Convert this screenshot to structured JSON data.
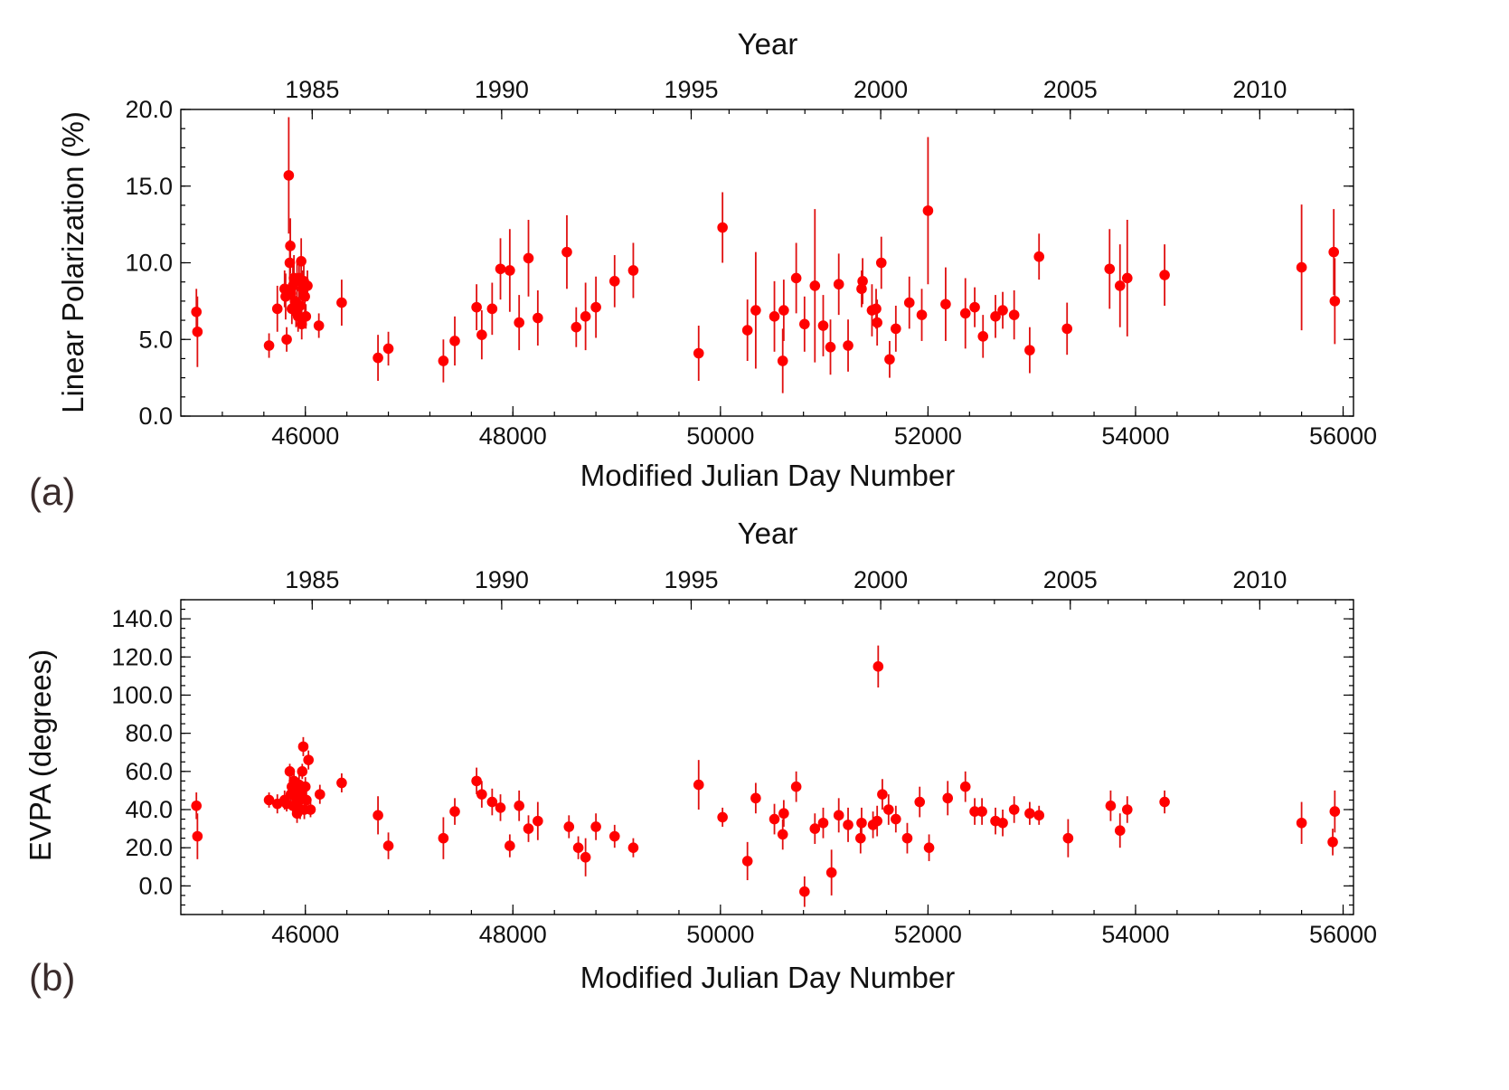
{
  "colors": {
    "marker": "#ff0000",
    "errorbar": "#e01010",
    "axis": "#000000"
  },
  "chart_data": [
    {
      "panel_label": "(a)",
      "type": "scatter",
      "title": "",
      "top_axis_label": "Year",
      "top_ticks": [
        "1985",
        "1990",
        "1995",
        "2000",
        "2005",
        "2010"
      ],
      "top_tick_mjd": [
        46066,
        47892,
        49718,
        51544,
        53371,
        55197
      ],
      "xlabel": "Modified Julian Day Number",
      "ylabel": "Linear Polarization (%)",
      "xlim": [
        44800,
        56100
      ],
      "ylim": [
        0,
        20
      ],
      "x_ticks": [
        "46000",
        "48000",
        "50000",
        "52000",
        "54000",
        "56000"
      ],
      "x_tick_values": [
        46000,
        48000,
        50000,
        52000,
        54000,
        56000
      ],
      "y_ticks": [
        "0.0",
        "5.0",
        "10.0",
        "15.0",
        "20.0"
      ],
      "y_tick_values": [
        0,
        5,
        10,
        15,
        20
      ],
      "points": [
        [
          44950,
          6.8,
          1.5
        ],
        [
          44960,
          5.5,
          2.3
        ],
        [
          45650,
          4.6,
          0.8
        ],
        [
          45730,
          7.0,
          1.5
        ],
        [
          45800,
          8.3,
          1.2
        ],
        [
          45810,
          7.8,
          1.5
        ],
        [
          45820,
          5.0,
          0.8
        ],
        [
          45840,
          15.7,
          3.8
        ],
        [
          45850,
          10.0,
          1.5
        ],
        [
          45855,
          11.1,
          1.8
        ],
        [
          45860,
          8.0,
          1.2
        ],
        [
          45870,
          7.0,
          1.0
        ],
        [
          45880,
          8.5,
          1.3
        ],
        [
          45890,
          9.0,
          1.5
        ],
        [
          45900,
          7.5,
          1.2
        ],
        [
          45910,
          6.8,
          1.0
        ],
        [
          45920,
          8.8,
          1.2
        ],
        [
          45930,
          6.5,
          1.0
        ],
        [
          45940,
          9.0,
          1.3
        ],
        [
          45950,
          7.2,
          1.0
        ],
        [
          45960,
          10.1,
          1.5
        ],
        [
          45965,
          6.0,
          1.0
        ],
        [
          45975,
          8.3,
          1.2
        ],
        [
          45985,
          8.8,
          1.2
        ],
        [
          45995,
          7.8,
          1.0
        ],
        [
          46005,
          6.5,
          0.8
        ],
        [
          46020,
          8.5,
          1.0
        ],
        [
          46130,
          5.9,
          0.8
        ],
        [
          46350,
          7.4,
          1.5
        ],
        [
          46700,
          3.8,
          1.5
        ],
        [
          46800,
          4.4,
          1.1
        ],
        [
          47330,
          3.6,
          1.4
        ],
        [
          47440,
          4.9,
          1.6
        ],
        [
          47650,
          7.1,
          1.5
        ],
        [
          47700,
          5.3,
          1.6
        ],
        [
          47800,
          7.0,
          1.7
        ],
        [
          47880,
          9.6,
          2.0
        ],
        [
          47970,
          9.5,
          2.7
        ],
        [
          48060,
          6.1,
          1.8
        ],
        [
          48150,
          10.3,
          2.5
        ],
        [
          48240,
          6.4,
          1.8
        ],
        [
          48520,
          10.7,
          2.4
        ],
        [
          48610,
          5.8,
          1.3
        ],
        [
          48700,
          6.5,
          2.2
        ],
        [
          48800,
          7.1,
          2.0
        ],
        [
          48980,
          8.8,
          1.7
        ],
        [
          49160,
          9.5,
          1.8
        ],
        [
          49790,
          4.1,
          1.8
        ],
        [
          50020,
          12.3,
          2.3
        ],
        [
          50260,
          5.6,
          2.0
        ],
        [
          50340,
          6.9,
          3.8
        ],
        [
          50520,
          6.5,
          2.3
        ],
        [
          50600,
          3.6,
          2.1
        ],
        [
          50610,
          6.9,
          2.0
        ],
        [
          50730,
          9.0,
          2.3
        ],
        [
          50810,
          6.0,
          1.8
        ],
        [
          50910,
          8.5,
          5.0
        ],
        [
          50990,
          5.9,
          2.0
        ],
        [
          51060,
          4.5,
          1.8
        ],
        [
          51140,
          8.6,
          2.0
        ],
        [
          51230,
          4.6,
          1.7
        ],
        [
          51360,
          8.3,
          1.2
        ],
        [
          51370,
          8.8,
          1.5
        ],
        [
          51460,
          6.9,
          1.7
        ],
        [
          51500,
          7.0,
          1.3
        ],
        [
          51510,
          6.1,
          1.5
        ],
        [
          51550,
          10.0,
          1.7
        ],
        [
          51630,
          3.7,
          1.2
        ],
        [
          51690,
          5.7,
          1.5
        ],
        [
          51820,
          7.4,
          1.7
        ],
        [
          51940,
          6.6,
          1.7
        ],
        [
          52000,
          13.4,
          4.8
        ],
        [
          52170,
          7.3,
          2.4
        ],
        [
          52360,
          6.7,
          2.3
        ],
        [
          52450,
          7.1,
          1.3
        ],
        [
          52530,
          5.2,
          1.4
        ],
        [
          52650,
          6.5,
          1.4
        ],
        [
          52720,
          6.9,
          1.2
        ],
        [
          52830,
          6.6,
          1.6
        ],
        [
          52980,
          4.3,
          1.5
        ],
        [
          53070,
          10.4,
          1.5
        ],
        [
          53340,
          5.7,
          1.7
        ],
        [
          53750,
          9.6,
          2.6
        ],
        [
          53850,
          8.5,
          2.7
        ],
        [
          53920,
          9.0,
          3.8
        ],
        [
          54280,
          9.2,
          2.0
        ],
        [
          55600,
          9.7,
          4.1
        ],
        [
          55910,
          10.7,
          2.8
        ],
        [
          55920,
          7.5,
          2.8
        ]
      ]
    },
    {
      "panel_label": "(b)",
      "type": "scatter",
      "title": "",
      "top_axis_label": "Year",
      "top_ticks": [
        "1985",
        "1990",
        "1995",
        "2000",
        "2005",
        "2010"
      ],
      "top_tick_mjd": [
        46066,
        47892,
        49718,
        51544,
        53371,
        55197
      ],
      "xlabel": "Modified Julian Day Number",
      "ylabel": "EVPA (degrees)",
      "xlim": [
        44800,
        56100
      ],
      "ylim": [
        -15,
        150
      ],
      "x_ticks": [
        "46000",
        "48000",
        "50000",
        "52000",
        "54000",
        "56000"
      ],
      "x_tick_values": [
        46000,
        48000,
        50000,
        52000,
        54000,
        56000
      ],
      "y_ticks": [
        "0.0",
        "20.0",
        "40.0",
        "60.0",
        "80.0",
        "100.0",
        "120.0",
        "140.0"
      ],
      "y_tick_values": [
        0,
        20,
        40,
        60,
        80,
        100,
        120,
        140
      ],
      "points": [
        [
          44950,
          42,
          7
        ],
        [
          44960,
          26,
          12
        ],
        [
          45650,
          45,
          4
        ],
        [
          45730,
          43,
          5
        ],
        [
          45800,
          45,
          5
        ],
        [
          45820,
          43,
          4
        ],
        [
          45850,
          60,
          4
        ],
        [
          45860,
          48,
          6
        ],
        [
          45870,
          52,
          5
        ],
        [
          45880,
          42,
          5
        ],
        [
          45890,
          55,
          6
        ],
        [
          45900,
          47,
          5
        ],
        [
          45910,
          50,
          6
        ],
        [
          45920,
          38,
          5
        ],
        [
          45930,
          44,
          5
        ],
        [
          45940,
          53,
          6
        ],
        [
          45950,
          40,
          5
        ],
        [
          45960,
          48,
          6
        ],
        [
          45970,
          60,
          4
        ],
        [
          45980,
          73,
          5
        ],
        [
          45990,
          40,
          5
        ],
        [
          46000,
          52,
          5
        ],
        [
          46010,
          45,
          5
        ],
        [
          46030,
          66,
          5
        ],
        [
          46050,
          40,
          4
        ],
        [
          46140,
          48,
          5
        ],
        [
          46350,
          54,
          5
        ],
        [
          46700,
          37,
          10
        ],
        [
          46800,
          21,
          7
        ],
        [
          47330,
          25,
          11
        ],
        [
          47440,
          39,
          7
        ],
        [
          47650,
          55,
          7
        ],
        [
          47700,
          48,
          7
        ],
        [
          47800,
          44,
          7
        ],
        [
          47880,
          41,
          7
        ],
        [
          47970,
          21,
          6
        ],
        [
          48060,
          42,
          8
        ],
        [
          48150,
          30,
          7
        ],
        [
          48240,
          34,
          10
        ],
        [
          48540,
          31,
          6
        ],
        [
          48630,
          20,
          6
        ],
        [
          48700,
          15,
          10
        ],
        [
          48800,
          31,
          7
        ],
        [
          48980,
          26,
          6
        ],
        [
          49160,
          20,
          5
        ],
        [
          49790,
          53,
          13
        ],
        [
          50020,
          36,
          5
        ],
        [
          50260,
          13,
          10
        ],
        [
          50340,
          46,
          8
        ],
        [
          50520,
          35,
          8
        ],
        [
          50600,
          27,
          8
        ],
        [
          50610,
          38,
          7
        ],
        [
          50730,
          52,
          8
        ],
        [
          50810,
          -3,
          8
        ],
        [
          50910,
          30,
          8
        ],
        [
          50990,
          33,
          8
        ],
        [
          51070,
          7,
          12
        ],
        [
          51140,
          37,
          9
        ],
        [
          51230,
          32,
          9
        ],
        [
          51350,
          25,
          8
        ],
        [
          51360,
          33,
          8
        ],
        [
          51470,
          32,
          7
        ],
        [
          51510,
          34,
          8
        ],
        [
          51520,
          115,
          11
        ],
        [
          51560,
          48,
          8
        ],
        [
          51620,
          40,
          8
        ],
        [
          51690,
          35,
          7
        ],
        [
          51800,
          25,
          8
        ],
        [
          51920,
          44,
          8
        ],
        [
          52010,
          20,
          7
        ],
        [
          52190,
          46,
          9
        ],
        [
          52360,
          52,
          8
        ],
        [
          52450,
          39,
          7
        ],
        [
          52520,
          39,
          7
        ],
        [
          52650,
          34,
          7
        ],
        [
          52720,
          33,
          7
        ],
        [
          52830,
          40,
          7
        ],
        [
          52980,
          38,
          6
        ],
        [
          53070,
          37,
          5
        ],
        [
          53350,
          25,
          10
        ],
        [
          53760,
          42,
          8
        ],
        [
          53850,
          29,
          9
        ],
        [
          53920,
          40,
          7
        ],
        [
          54280,
          44,
          6
        ],
        [
          55600,
          33,
          11
        ],
        [
          55900,
          23,
          7
        ],
        [
          55920,
          39,
          11
        ]
      ]
    }
  ]
}
